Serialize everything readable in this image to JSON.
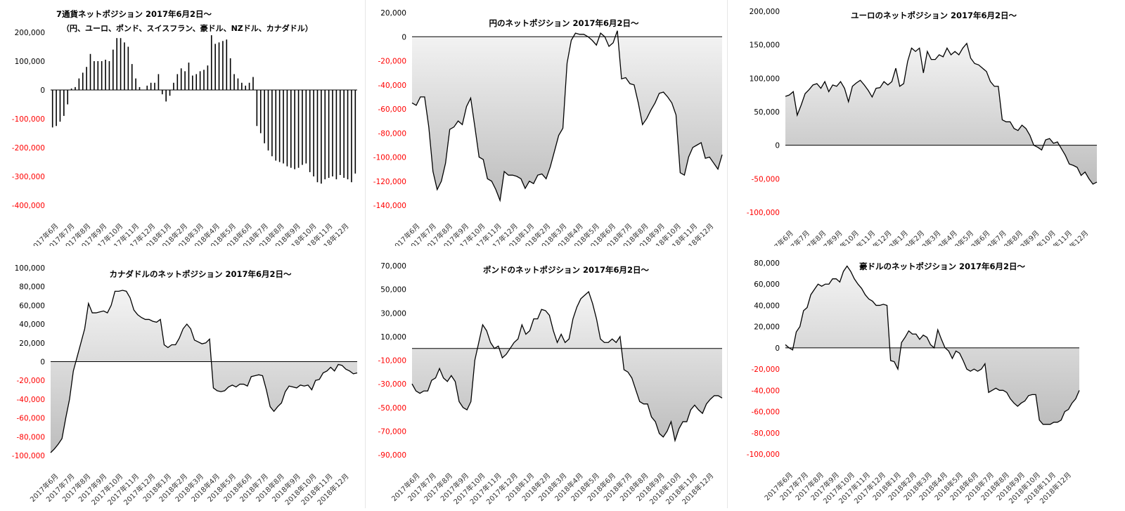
{
  "months": [
    "2017年6月",
    "2017年7月",
    "2017年8月",
    "2017年9月",
    "2017年10月",
    "2017年11月",
    "2017年12月",
    "2018年1月",
    "2018年2月",
    "2018年3月",
    "2018年4月",
    "2018年5月",
    "2018年6月",
    "2018年7月",
    "2018年8月",
    "2018年9月",
    "2018年10月",
    "2018年11月",
    "2018年12月"
  ],
  "colors": {
    "negative_tick": "#ff0000",
    "positive_tick": "#000000",
    "line": "#000000",
    "fill_top": "#f4f4f4",
    "fill_bottom": "#bdbdbd"
  },
  "chart_data": [
    {
      "type": "bar",
      "title": "7通貨ネットポジション  2017年6月2日～",
      "subtitle": "（円、ユーロ、ポンド、スイスフラン、豪ドル、NZドル、カナダドル）",
      "xlabel": "",
      "ylabel": "",
      "ylim": [
        -400000,
        200000
      ],
      "yticks": [
        200000,
        100000,
        0,
        -100000,
        -200000,
        -300000,
        -400000
      ],
      "ytick_labels": [
        "200,000",
        "100,000",
        "0",
        "-100,000",
        "-200,000",
        "-300,000",
        "-400,000"
      ],
      "values": [
        -130000,
        -125000,
        -110000,
        -90000,
        -50000,
        5000,
        10000,
        40000,
        60000,
        80000,
        125000,
        100000,
        100000,
        100000,
        105000,
        100000,
        140000,
        180000,
        180000,
        165000,
        150000,
        90000,
        40000,
        10000,
        0,
        15000,
        25000,
        25000,
        55000,
        -15000,
        -40000,
        -20000,
        25000,
        55000,
        75000,
        65000,
        95000,
        50000,
        55000,
        65000,
        70000,
        85000,
        190000,
        160000,
        165000,
        170000,
        175000,
        110000,
        55000,
        40000,
        25000,
        15000,
        25000,
        45000,
        -125000,
        -150000,
        -185000,
        -210000,
        -230000,
        -245000,
        -250000,
        -255000,
        -265000,
        -270000,
        -275000,
        -270000,
        -260000,
        -255000,
        -285000,
        -300000,
        -320000,
        -325000,
        -310000,
        -305000,
        -300000,
        -310000,
        -295000,
        -305000,
        -310000,
        -320000,
        -290000
      ]
    },
    {
      "type": "area",
      "title": "円のネットポジション  2017年6月2日～",
      "xlabel": "",
      "ylabel": "",
      "ylim": [
        -140000,
        20000
      ],
      "yticks": [
        20000,
        0,
        -20000,
        -40000,
        -60000,
        -80000,
        -100000,
        -120000,
        -140000
      ],
      "ytick_labels": [
        "20,000",
        "0",
        "-20,000",
        "-40,000",
        "-60,000",
        "-80,000",
        "-100,000",
        "-120,000",
        "-140,000"
      ],
      "values": [
        -55000,
        -57000,
        -50000,
        -50000,
        -75000,
        -112000,
        -127000,
        -120000,
        -105000,
        -77000,
        -75000,
        -70000,
        -73000,
        -58000,
        -51000,
        -75000,
        -100000,
        -102000,
        -118000,
        -120000,
        -127000,
        -136000,
        -112000,
        -115000,
        -115000,
        -116000,
        -118000,
        -126000,
        -120000,
        -122000,
        -115000,
        -114000,
        -118000,
        -108000,
        -95000,
        -82000,
        -76000,
        -22000,
        -3000,
        3000,
        2000,
        2000,
        0,
        -3000,
        -7000,
        3000,
        0,
        -8000,
        -5000,
        5000,
        -35000,
        -34000,
        -39000,
        -40000,
        -55000,
        -73000,
        -68000,
        -61000,
        -55000,
        -47000,
        -46000,
        -50000,
        -55000,
        -65000,
        -113000,
        -115000,
        -100000,
        -92000,
        -90000,
        -88000,
        -101000,
        -100000,
        -105000,
        -110000,
        -98000
      ]
    },
    {
      "type": "area",
      "title": "ユーロのネットポジション  2017年6月2日～",
      "xlabel": "",
      "ylabel": "",
      "ylim": [
        -100000,
        200000
      ],
      "yticks": [
        200000,
        150000,
        100000,
        50000,
        0,
        -50000,
        -100000
      ],
      "ytick_labels": [
        "200,000",
        "150,000",
        "100,000",
        "50,000",
        "0",
        "-50,000",
        "-100,000"
      ],
      "values": [
        73000,
        75000,
        80000,
        45000,
        60000,
        77000,
        83000,
        90000,
        92000,
        85000,
        95000,
        80000,
        90000,
        88000,
        95000,
        85000,
        65000,
        88000,
        93000,
        97000,
        90000,
        82000,
        72000,
        85000,
        86000,
        95000,
        90000,
        95000,
        115000,
        88000,
        92000,
        125000,
        145000,
        140000,
        145000,
        108000,
        140000,
        128000,
        128000,
        135000,
        132000,
        145000,
        135000,
        140000,
        135000,
        145000,
        152000,
        130000,
        122000,
        120000,
        115000,
        110000,
        95000,
        88000,
        88000,
        38000,
        35000,
        35000,
        25000,
        22000,
        30000,
        25000,
        15000,
        0,
        -3000,
        -7000,
        8000,
        10000,
        3000,
        5000,
        -5000,
        -15000,
        -28000,
        -30000,
        -33000,
        -45000,
        -40000,
        -50000,
        -58000,
        -55000
      ]
    },
    {
      "type": "area",
      "title": "カナダドルのネットポジション  2017年6月2日～",
      "xlabel": "",
      "ylabel": "",
      "ylim": [
        -100000,
        100000
      ],
      "yticks": [
        100000,
        80000,
        60000,
        40000,
        20000,
        0,
        -20000,
        -40000,
        -60000,
        -80000,
        -100000
      ],
      "ytick_labels": [
        "100,000",
        "80,000",
        "60,000",
        "40,000",
        "20,000",
        "0",
        "-20,000",
        "-40,000",
        "-60,000",
        "-80,000",
        "-100,000"
      ],
      "values": [
        -97000,
        -93000,
        -88000,
        -82000,
        -60000,
        -40000,
        -10000,
        5000,
        20000,
        35000,
        62000,
        52000,
        52000,
        53000,
        54000,
        52000,
        60000,
        75000,
        75000,
        76000,
        75000,
        68000,
        55000,
        50000,
        47000,
        45000,
        45000,
        43000,
        42000,
        45000,
        18000,
        15000,
        18000,
        18000,
        25000,
        35000,
        40000,
        35000,
        23000,
        21000,
        19000,
        20000,
        24000,
        -28000,
        -31000,
        -32000,
        -31000,
        -27000,
        -25000,
        -27000,
        -24000,
        -24000,
        -26000,
        -16000,
        -15000,
        -14000,
        -15000,
        -30000,
        -48000,
        -53000,
        -48000,
        -44000,
        -32000,
        -26000,
        -27000,
        -28000,
        -25000,
        -26000,
        -25000,
        -30000,
        -20000,
        -19000,
        -12000,
        -10000,
        -6000,
        -10000,
        -3000,
        -4000,
        -8000,
        -10000,
        -13000,
        -12000
      ]
    },
    {
      "type": "area",
      "title": "ポンドのネットポジション  2017年6月2日～",
      "xlabel": "",
      "ylabel": "",
      "ylim": [
        -90000,
        70000
      ],
      "yticks": [
        70000,
        50000,
        30000,
        10000,
        -10000,
        -30000,
        -50000,
        -70000,
        -90000
      ],
      "ytick_labels": [
        "70,000",
        "50,000",
        "30,000",
        "10,000",
        "-10,000",
        "-30,000",
        "-50,000",
        "-70,000",
        "-90,000"
      ],
      "values": [
        -30000,
        -36000,
        -38000,
        -36000,
        -36000,
        -27000,
        -25000,
        -17000,
        -25000,
        -28000,
        -23000,
        -28000,
        -45000,
        -50000,
        -52000,
        -45000,
        -10000,
        5000,
        20000,
        15000,
        5000,
        0,
        2000,
        -8000,
        -5000,
        0,
        5000,
        8000,
        20000,
        12000,
        15000,
        25000,
        25000,
        33000,
        32000,
        28000,
        15000,
        5000,
        12000,
        5000,
        8000,
        25000,
        35000,
        42000,
        45000,
        48000,
        38000,
        25000,
        8000,
        5000,
        5000,
        8000,
        5000,
        10000,
        -18000,
        -20000,
        -25000,
        -35000,
        -45000,
        -47000,
        -47000,
        -58000,
        -62000,
        -72000,
        -75000,
        -70000,
        -62000,
        -78000,
        -68000,
        -62000,
        -62000,
        -52000,
        -48000,
        -52000,
        -55000,
        -47000,
        -43000,
        -40000,
        -40000,
        -42000
      ]
    },
    {
      "type": "area",
      "title": "豪ドルのネットポジション  2017年6月2日～",
      "xlabel": "",
      "ylabel": "",
      "ylim": [
        -100000,
        80000
      ],
      "yticks": [
        80000,
        60000,
        40000,
        20000,
        0,
        -20000,
        -40000,
        -60000,
        -80000,
        -100000
      ],
      "ytick_labels": [
        "80,000",
        "60,000",
        "40,000",
        "20,000",
        "0",
        "-20,000",
        "-40,000",
        "-60,000",
        "-80,000",
        "-100,000"
      ],
      "values": [
        3000,
        0,
        -2000,
        15000,
        20000,
        35000,
        38000,
        50000,
        55000,
        60000,
        58000,
        60000,
        60000,
        65000,
        65000,
        62000,
        72000,
        77000,
        72000,
        65000,
        60000,
        56000,
        50000,
        46000,
        44000,
        40000,
        40000,
        41000,
        40000,
        -12000,
        -13000,
        -20000,
        5000,
        10000,
        16000,
        13000,
        13000,
        8000,
        12000,
        10000,
        3000,
        0,
        17000,
        8000,
        0,
        -3000,
        -10000,
        -3000,
        -5000,
        -12000,
        -20000,
        -22000,
        -20000,
        -22000,
        -20000,
        -15000,
        -42000,
        -40000,
        -38000,
        -40000,
        -40000,
        -42000,
        -48000,
        -52000,
        -55000,
        -52000,
        -50000,
        -45000,
        -44000,
        -44000,
        -68000,
        -72000,
        -72000,
        -72000,
        -70000,
        -70000,
        -68000,
        -60000,
        -58000,
        -52000,
        -48000,
        -40000
      ]
    }
  ]
}
